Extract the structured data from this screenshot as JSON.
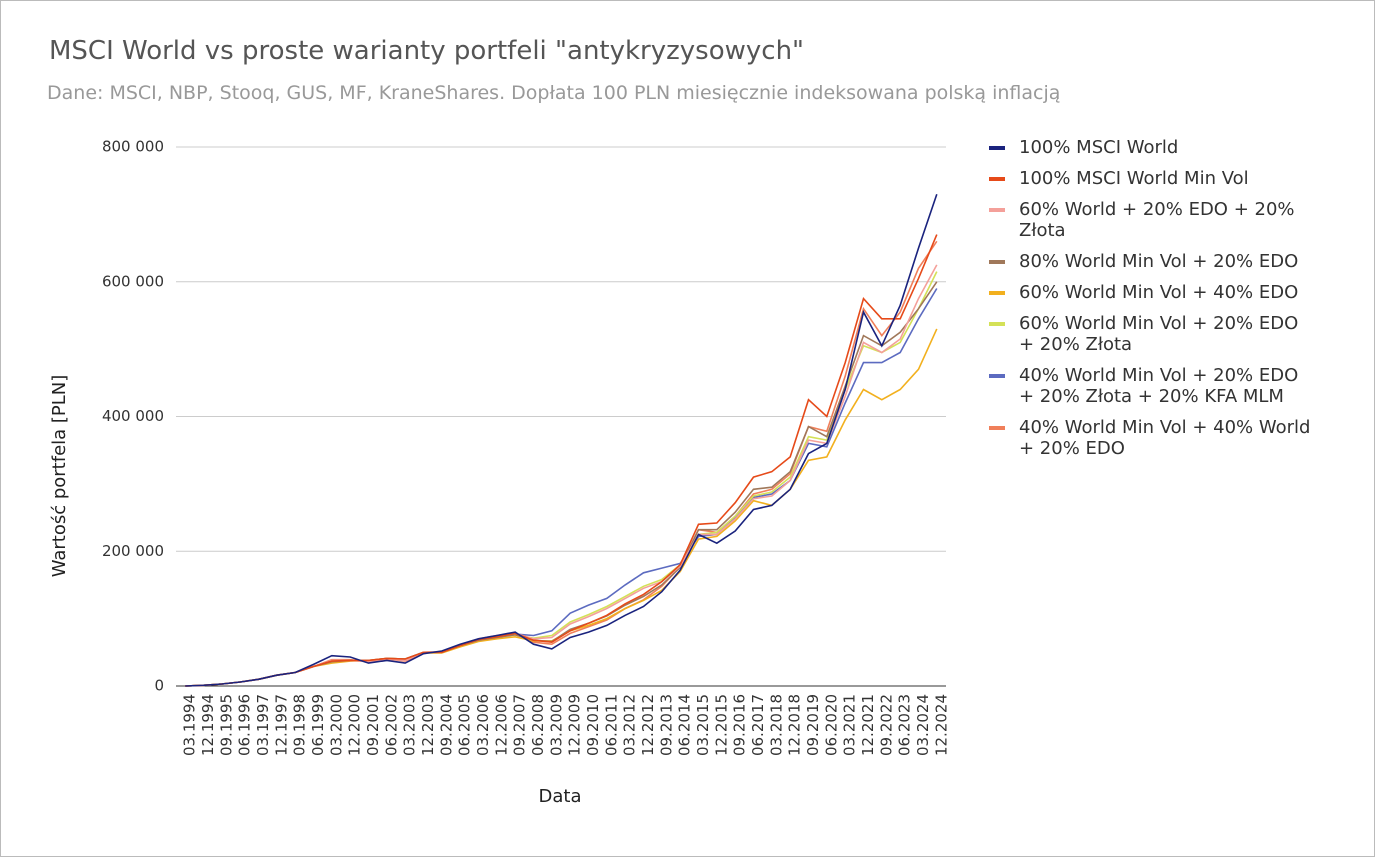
{
  "chart_data": {
    "type": "line",
    "title": "MSCI World vs proste warianty portfeli \"antykryzysowych\"",
    "subtitle": "Dane: MSCI, NBP, Stooq, GUS, MF, KraneShares. Dopłata 100 PLN miesięcznie indeksowana polską inflacją",
    "x_label": "Data",
    "y_label": "Wartość portfela [PLN]",
    "categories": [
      "03.1994",
      "12.1994",
      "09.1995",
      "06.1996",
      "03.1997",
      "12.1997",
      "09.1998",
      "06.1999",
      "03.2000",
      "12.2000",
      "09.2001",
      "06.2002",
      "03.2003",
      "12.2003",
      "09.2004",
      "06.2005",
      "03.2006",
      "12.2006",
      "09.2007",
      "06.2008",
      "03.2009",
      "12.2009",
      "09.2010",
      "06.2011",
      "03.2012",
      "12.2012",
      "09.2013",
      "06.2014",
      "03.2015",
      "12.2015",
      "09.2016",
      "06.2017",
      "03.2018",
      "12.2018",
      "09.2019",
      "06.2020",
      "03.2021",
      "12.2021",
      "09.2022",
      "06.2023",
      "03.2024",
      "12.2024"
    ],
    "ylim": [
      0,
      800000
    ],
    "yticks": [
      0,
      {
        "value": 200000,
        "label": "200 000"
      },
      {
        "value": 400000,
        "label": "400 000"
      },
      {
        "value": 600000,
        "label": "600 000"
      },
      {
        "value": 800000,
        "label": "800 000"
      }
    ],
    "grid": true,
    "legend": "right",
    "series": [
      {
        "name": "100% MSCI World",
        "color": "#1a237e",
        "values": [
          0,
          1000,
          3000,
          6000,
          10000,
          16000,
          20000,
          32000,
          45000,
          43000,
          34000,
          38000,
          34000,
          48000,
          52000,
          62000,
          70000,
          75000,
          80000,
          62000,
          55000,
          72000,
          80000,
          90000,
          105000,
          118000,
          140000,
          172000,
          225000,
          212000,
          230000,
          262000,
          268000,
          292000,
          345000,
          360000,
          440000,
          555000,
          505000,
          565000,
          650000,
          730000
        ]
      },
      {
        "name": "100% MSCI World Min Vol",
        "color": "#e64a19",
        "values": [
          0,
          1000,
          3000,
          6000,
          10000,
          16000,
          20000,
          29000,
          37000,
          38000,
          38000,
          41000,
          40000,
          50000,
          50000,
          60000,
          69000,
          73000,
          78000,
          68000,
          65000,
          82000,
          93000,
          105000,
          122000,
          136000,
          155000,
          180000,
          240000,
          242000,
          272000,
          310000,
          318000,
          340000,
          425000,
          400000,
          480000,
          575000,
          545000,
          545000,
          605000,
          670000
        ]
      },
      {
        "name": "60% World + 20% EDO + 20% Złota",
        "color": "#f4a09a",
        "values": [
          0,
          1000,
          3000,
          6000,
          10000,
          16000,
          20000,
          29000,
          38000,
          38000,
          36000,
          40000,
          38000,
          50000,
          51000,
          61000,
          70000,
          75000,
          78000,
          70000,
          72000,
          92000,
          103000,
          115000,
          130000,
          145000,
          155000,
          178000,
          225000,
          225000,
          248000,
          278000,
          282000,
          305000,
          365000,
          360000,
          430000,
          510000,
          495000,
          515000,
          575000,
          625000
        ]
      },
      {
        "name": "80% World Min Vol + 20% EDO",
        "color": "#a0785a",
        "values": [
          0,
          1000,
          3000,
          6000,
          10000,
          16000,
          20000,
          29000,
          36000,
          38000,
          38000,
          41000,
          40000,
          50000,
          50000,
          60000,
          68000,
          72000,
          76000,
          68000,
          66000,
          84000,
          93000,
          104000,
          120000,
          133000,
          150000,
          176000,
          232000,
          232000,
          258000,
          292000,
          295000,
          318000,
          385000,
          370000,
          445000,
          520000,
          505000,
          525000,
          560000,
          600000
        ]
      },
      {
        "name": "60% World Min Vol + 40% EDO",
        "color": "#f2b01e",
        "values": [
          0,
          1000,
          3000,
          6000,
          10000,
          16000,
          20000,
          29000,
          34000,
          37000,
          38000,
          41000,
          40000,
          49000,
          49000,
          58000,
          66000,
          70000,
          73000,
          67000,
          67000,
          82000,
          90000,
          100000,
          115000,
          127000,
          142000,
          170000,
          218000,
          222000,
          245000,
          275000,
          268000,
          292000,
          335000,
          340000,
          395000,
          440000,
          425000,
          440000,
          470000,
          530000
        ]
      },
      {
        "name": "60% World Min Vol + 20% EDO + 20% Złota",
        "color": "#d4e157",
        "values": [
          0,
          1000,
          3000,
          6000,
          10000,
          16000,
          20000,
          29000,
          36000,
          38000,
          37000,
          41000,
          40000,
          50000,
          50000,
          60000,
          69000,
          73000,
          76000,
          71000,
          75000,
          95000,
          106000,
          118000,
          133000,
          148000,
          158000,
          180000,
          225000,
          228000,
          252000,
          282000,
          288000,
          310000,
          370000,
          365000,
          440000,
          505000,
          495000,
          510000,
          560000,
          615000
        ]
      },
      {
        "name": "40% World Min Vol + 20% EDO + 20% Złota + 20% KFA MLM",
        "color": "#5c6bc0",
        "values": [
          0,
          1000,
          3000,
          6000,
          10000,
          16000,
          20000,
          29000,
          36000,
          38000,
          37000,
          41000,
          40000,
          50000,
          50000,
          60000,
          69000,
          74000,
          77000,
          75000,
          82000,
          108000,
          120000,
          130000,
          150000,
          168000,
          175000,
          182000,
          222000,
          225000,
          250000,
          280000,
          285000,
          305000,
          360000,
          355000,
          420000,
          480000,
          480000,
          495000,
          545000,
          590000
        ]
      },
      {
        "name": "40% World Min Vol + 40% World + 20% EDO",
        "color": "#f07f5a",
        "values": [
          0,
          1000,
          3000,
          6000,
          10000,
          16000,
          20000,
          29000,
          39000,
          39000,
          36000,
          40000,
          37000,
          49000,
          51000,
          61000,
          69000,
          74000,
          78000,
          65000,
          62000,
          78000,
          88000,
          98000,
          115000,
          128000,
          148000,
          177000,
          232000,
          228000,
          252000,
          285000,
          292000,
          315000,
          385000,
          378000,
          460000,
          560000,
          520000,
          555000,
          620000,
          660000
        ]
      }
    ]
  }
}
